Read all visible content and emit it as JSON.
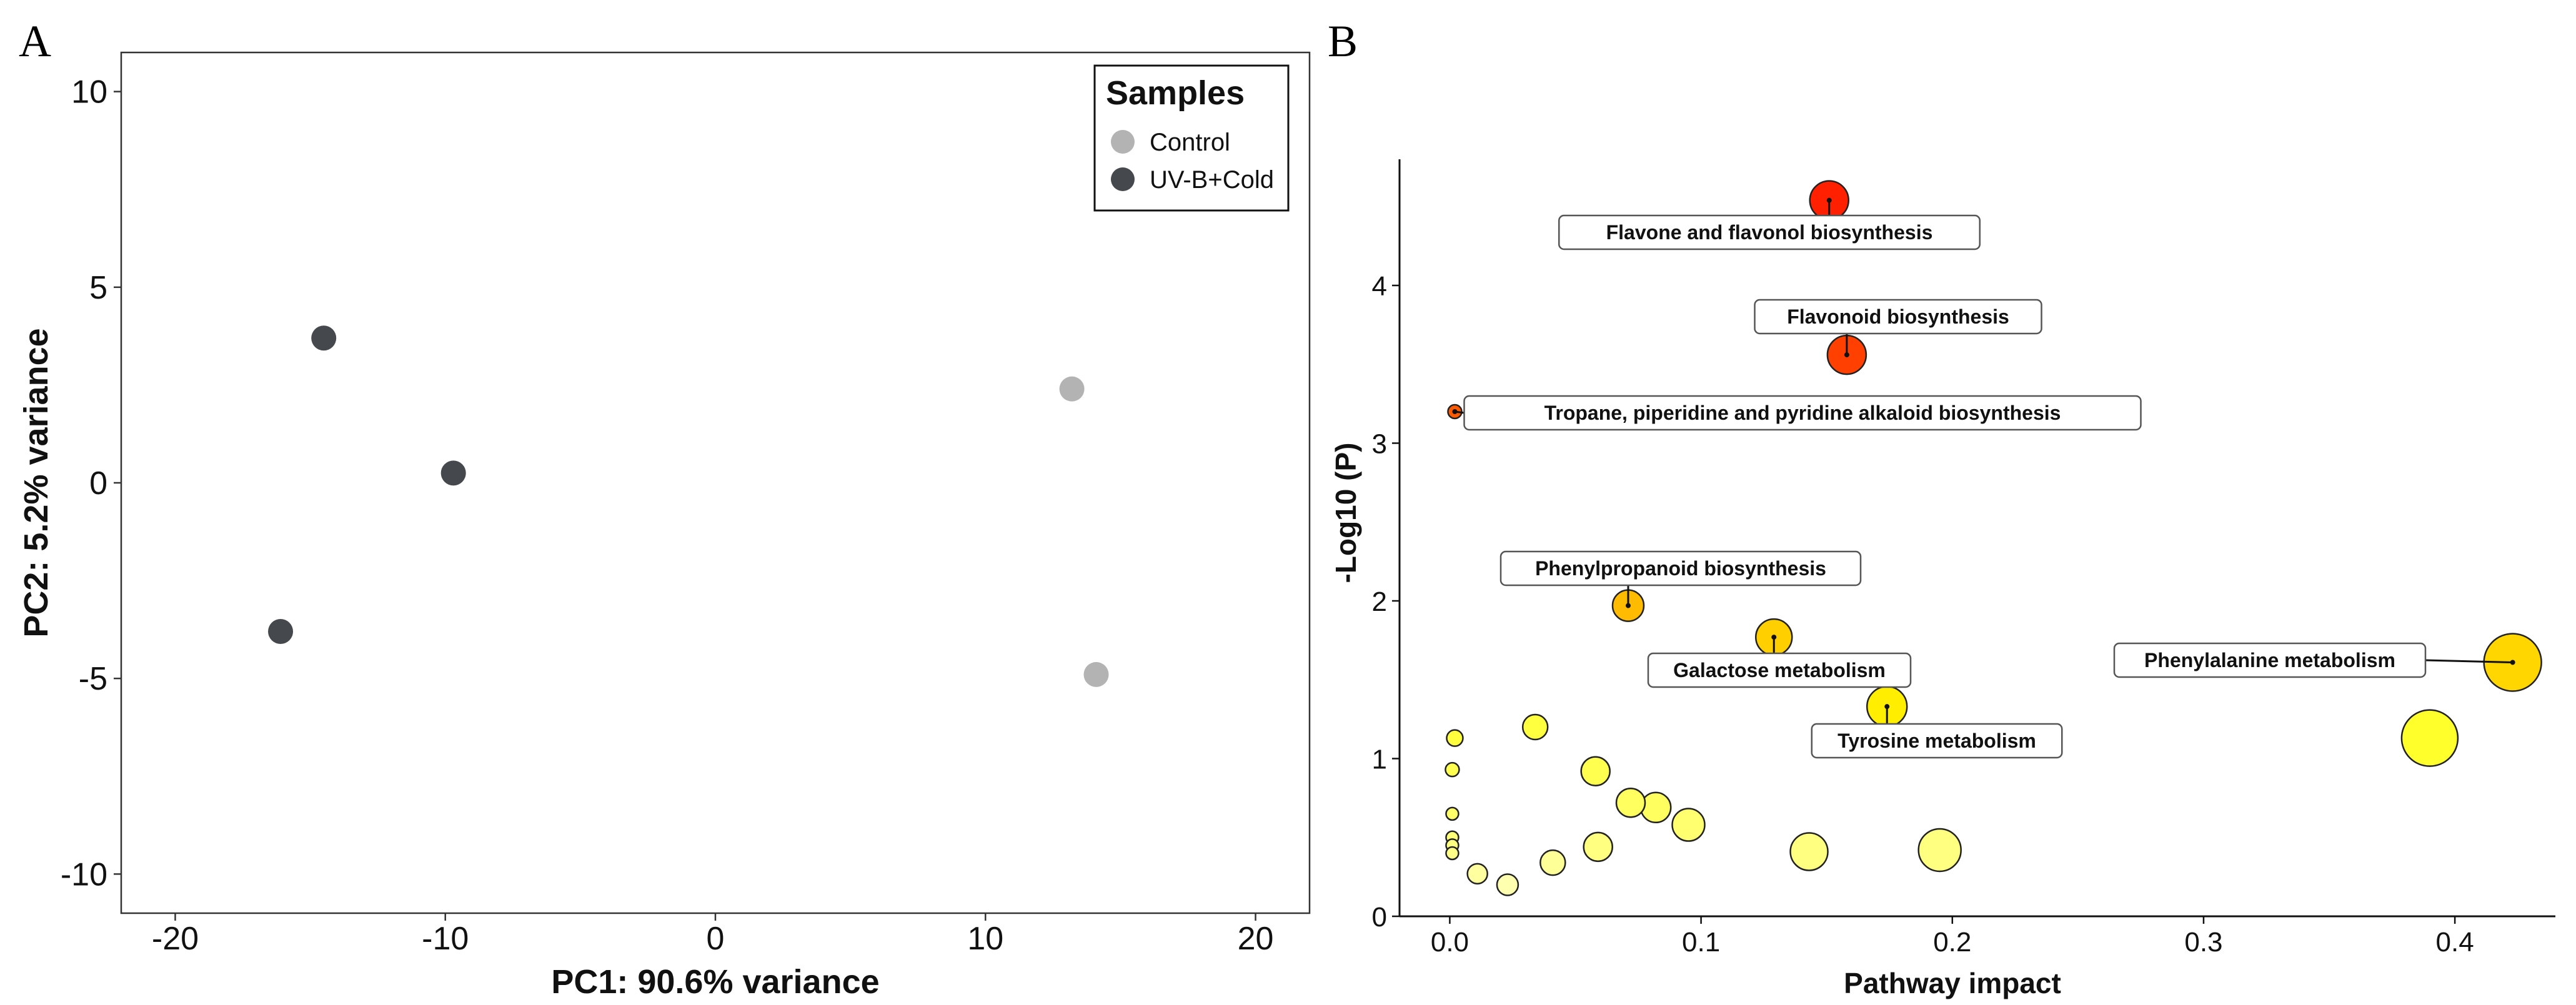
{
  "chart_data": [
    {
      "panel": "A",
      "type": "scatter",
      "title": "",
      "xlabel": "PC1: 90.6% variance",
      "ylabel": "PC2: 5.2% variance",
      "xlim": [
        -22,
        22
      ],
      "ylim": [
        -11,
        11
      ],
      "xticks": [
        -20,
        -10,
        0,
        10,
        20
      ],
      "yticks": [
        -10,
        -5,
        0,
        5,
        10
      ],
      "legend": {
        "title": "Samples",
        "position": "top-right",
        "entries": [
          {
            "label": "Control",
            "color": "#b3b3b3"
          },
          {
            "label": "UV-B+Cold",
            "color": "#45494e"
          }
        ]
      },
      "series": [
        {
          "name": "Control",
          "color": "#b3b3b3",
          "points": [
            [
              13.2,
              2.4
            ],
            [
              14.1,
              -4.9
            ]
          ]
        },
        {
          "name": "UV-B+Cold",
          "color": "#45494e",
          "points": [
            [
              -14.5,
              3.7
            ],
            [
              -9.7,
              0.25
            ],
            [
              -16.1,
              -3.8
            ]
          ]
        }
      ]
    },
    {
      "panel": "B",
      "type": "scatter",
      "title": "",
      "xlabel": "Pathway impact",
      "ylabel": "-Log10 (P)",
      "xlim": [
        -0.02,
        0.44
      ],
      "ylim": [
        0,
        4.8
      ],
      "xticks": [
        "0.0",
        "0.1",
        "0.2",
        "0.3",
        "0.4"
      ],
      "yticks": [
        0,
        1,
        2,
        3,
        4
      ],
      "color_scale": "P value: low (red) to high (yellow)",
      "points": [
        {
          "x": 0.151,
          "y": 4.54,
          "size": 31,
          "color": "#ff2000"
        },
        {
          "x": 0.158,
          "y": 3.56,
          "size": 31,
          "color": "#ff4000"
        },
        {
          "x": 0.002,
          "y": 3.2,
          "size": 11,
          "color": "#ff5a00"
        },
        {
          "x": 0.071,
          "y": 1.97,
          "size": 25,
          "color": "#ffbb00"
        },
        {
          "x": 0.129,
          "y": 1.77,
          "size": 29,
          "color": "#ffcf00"
        },
        {
          "x": 0.423,
          "y": 1.61,
          "size": 46,
          "color": "#ffd600"
        },
        {
          "x": 0.174,
          "y": 1.33,
          "size": 32,
          "color": "#ffee00"
        },
        {
          "x": 0.39,
          "y": 1.13,
          "size": 45,
          "color": "#ffff2c"
        },
        {
          "x": 0.002,
          "y": 1.13,
          "size": 13,
          "color": "#ffff3e"
        },
        {
          "x": 0.034,
          "y": 1.2,
          "size": 20,
          "color": "#ffff40"
        },
        {
          "x": 0.001,
          "y": 0.93,
          "size": 11,
          "color": "#ffff50"
        },
        {
          "x": 0.058,
          "y": 0.92,
          "size": 23,
          "color": "#ffff50"
        },
        {
          "x": 0.072,
          "y": 0.72,
          "size": 23,
          "color": "#ffff60"
        },
        {
          "x": 0.082,
          "y": 0.69,
          "size": 24,
          "color": "#ffff60"
        },
        {
          "x": 0.001,
          "y": 0.65,
          "size": 10,
          "color": "#ffff68"
        },
        {
          "x": 0.095,
          "y": 0.58,
          "size": 26,
          "color": "#ffff70"
        },
        {
          "x": 0.001,
          "y": 0.5,
          "size": 10,
          "color": "#ffff78"
        },
        {
          "x": 0.001,
          "y": 0.45,
          "size": 10,
          "color": "#ffff80"
        },
        {
          "x": 0.059,
          "y": 0.44,
          "size": 23,
          "color": "#ffff80"
        },
        {
          "x": 0.001,
          "y": 0.4,
          "size": 10,
          "color": "#ffff88"
        },
        {
          "x": 0.143,
          "y": 0.41,
          "size": 30,
          "color": "#ffff80"
        },
        {
          "x": 0.195,
          "y": 0.42,
          "size": 34,
          "color": "#ffff80"
        },
        {
          "x": 0.041,
          "y": 0.34,
          "size": 20,
          "color": "#ffff98"
        },
        {
          "x": 0.011,
          "y": 0.27,
          "size": 16,
          "color": "#ffffa0"
        },
        {
          "x": 0.023,
          "y": 0.2,
          "size": 17,
          "color": "#ffffb0"
        }
      ],
      "annotations": [
        {
          "text": "Flavone and flavonol biosynthesis",
          "x": 0.151,
          "y": 4.54
        },
        {
          "text": "Flavonoid biosynthesis",
          "x": 0.158,
          "y": 3.56
        },
        {
          "text": "Tropane, piperidine and pyridine alkaloid biosynthesis",
          "x": 0.002,
          "y": 3.2
        },
        {
          "text": "Phenylpropanoid biosynthesis",
          "x": 0.071,
          "y": 1.97
        },
        {
          "text": "Galactose metabolism",
          "x": 0.129,
          "y": 1.77
        },
        {
          "text": "Phenylalanine metabolism",
          "x": 0.423,
          "y": 1.61
        },
        {
          "text": "Tyrosine metabolism",
          "x": 0.174,
          "y": 1.33
        }
      ]
    }
  ],
  "panels": {
    "a_letter": "A",
    "b_letter": "B"
  }
}
